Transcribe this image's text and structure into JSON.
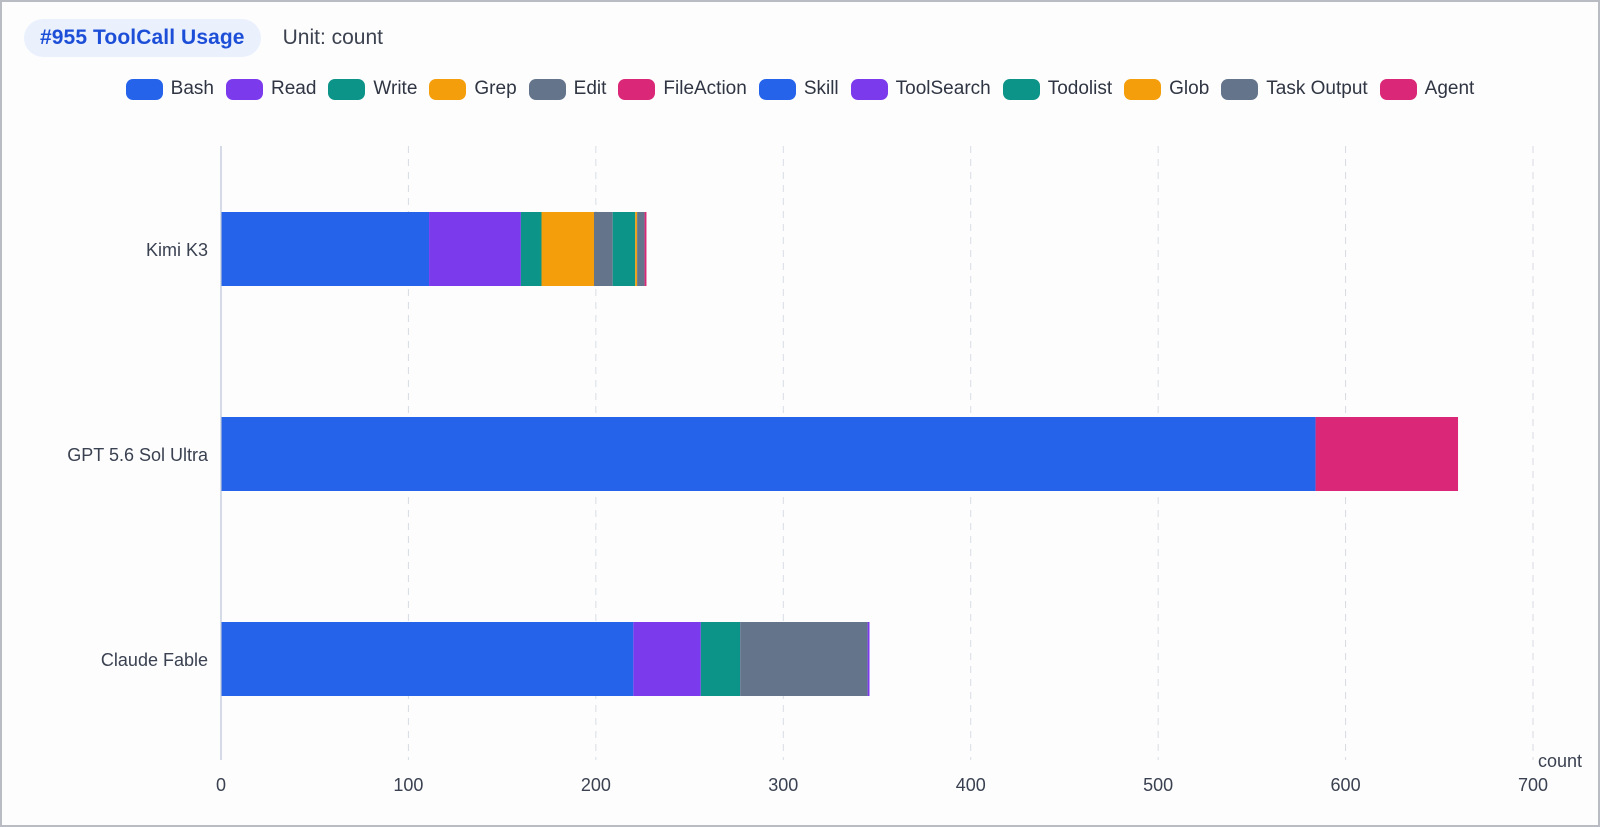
{
  "header": {
    "title": "#955 ToolCall Usage",
    "unit": "Unit: count"
  },
  "chart_data": {
    "type": "bar",
    "orientation": "horizontal",
    "stacked": true,
    "categories": [
      "Kimi K3",
      "GPT 5.6 Sol Ultra",
      "Claude Fable"
    ],
    "series": [
      {
        "name": "Bash",
        "color": "#2563eb",
        "values": [
          111,
          584,
          220
        ]
      },
      {
        "name": "Read",
        "color": "#7c3aed",
        "values": [
          49,
          0,
          36
        ]
      },
      {
        "name": "Write",
        "color": "#0d9488",
        "values": [
          11,
          0,
          21
        ]
      },
      {
        "name": "Grep",
        "color": "#f59e0b",
        "values": [
          28,
          0,
          0
        ]
      },
      {
        "name": "Edit",
        "color": "#64748b",
        "values": [
          10,
          0,
          68
        ]
      },
      {
        "name": "FileAction",
        "color": "#db2777",
        "values": [
          0,
          0,
          0
        ]
      },
      {
        "name": "Skill",
        "color": "#2563eb",
        "values": [
          0,
          0,
          0
        ]
      },
      {
        "name": "ToolSearch",
        "color": "#7c3aed",
        "values": [
          0,
          0,
          1
        ]
      },
      {
        "name": "Todolist",
        "color": "#0d9488",
        "values": [
          12,
          0,
          0
        ]
      },
      {
        "name": "Glob",
        "color": "#f59e0b",
        "values": [
          1,
          0,
          0
        ]
      },
      {
        "name": "Task Output",
        "color": "#64748b",
        "values": [
          4,
          0,
          0
        ]
      },
      {
        "name": "Agent",
        "color": "#db2777",
        "values": [
          1,
          76,
          0
        ]
      }
    ],
    "xlabel": "count",
    "xlim": [
      0,
      700
    ],
    "xticks": [
      0,
      100,
      200,
      300,
      400,
      500,
      600,
      700
    ],
    "grid": true,
    "legend_position": "top-center"
  }
}
